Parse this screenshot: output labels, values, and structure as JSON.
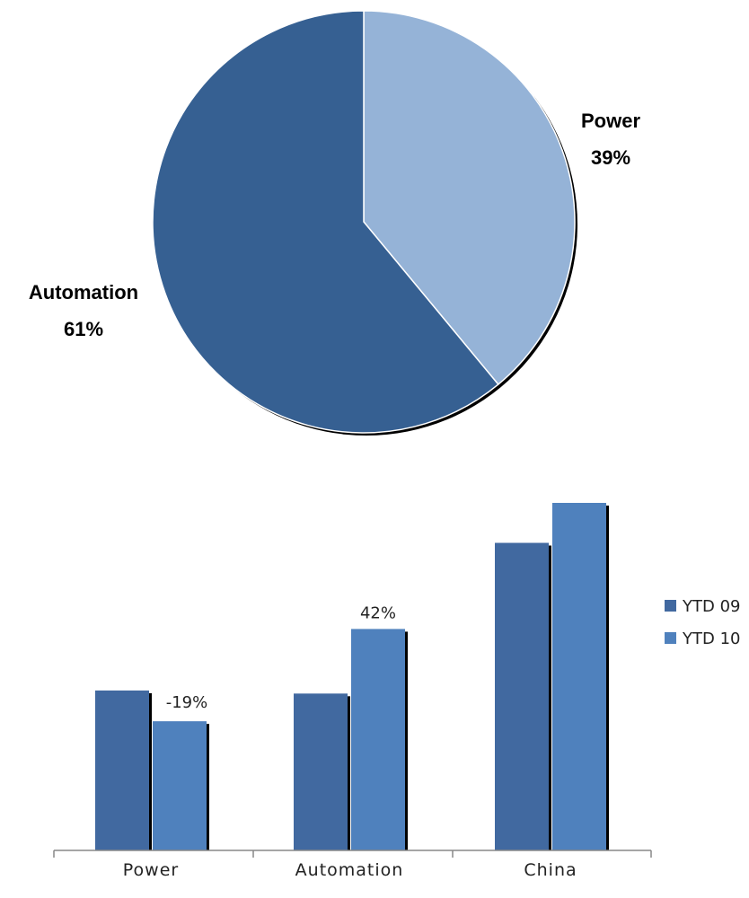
{
  "chart_data": [
    {
      "type": "pie",
      "slices": [
        {
          "label": "Power",
          "value": 39,
          "value_label": "39%",
          "color": "#95b3d7"
        },
        {
          "label": "Automation",
          "value": 61,
          "value_label": "61%",
          "color": "#366092"
        }
      ]
    },
    {
      "type": "bar",
      "categories": [
        "Power",
        "Automation",
        "China"
      ],
      "series": [
        {
          "name": "YTD 09",
          "values": [
            52,
            51,
            100
          ],
          "color": "#4169a0"
        },
        {
          "name": "YTD 10",
          "values": [
            42,
            72,
            113
          ],
          "color": "#4f81bd"
        }
      ],
      "data_labels": [
        {
          "category": "Power",
          "text": "-19%"
        },
        {
          "category": "Automation",
          "text": "42%"
        }
      ],
      "ylim": [
        0,
        120
      ],
      "grid": false,
      "legend": "right"
    }
  ]
}
